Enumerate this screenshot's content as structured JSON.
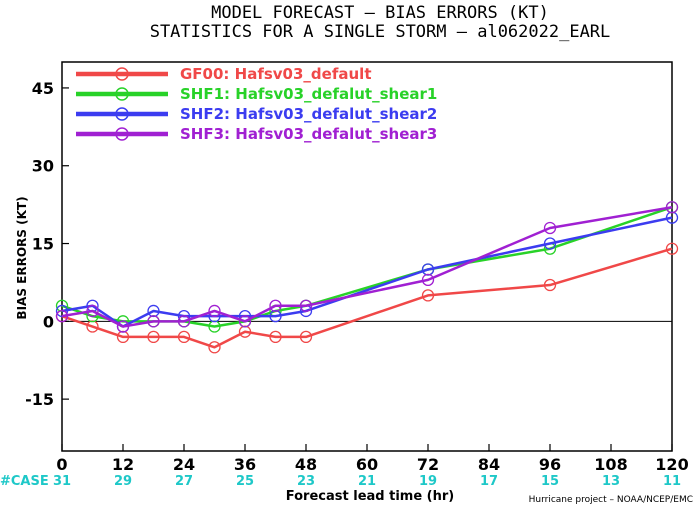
{
  "chart_data": {
    "type": "line",
    "title": "MODEL FORECAST – BIAS ERRORS (KT)",
    "subtitle": "STATISTICS FOR A SINGLE STORM – al062022_EARL",
    "ylabel": "BIAS ERRORS (KT)",
    "xlabel": "Forecast lead time (hr)",
    "credit": "Hurricane project – NOAA/NCEP/EMC",
    "xlim": [
      0,
      120
    ],
    "ylim": [
      -25,
      50
    ],
    "xticks": [
      "0",
      "12",
      "24",
      "36",
      "48",
      "60",
      "72",
      "84",
      "96",
      "108",
      "120"
    ],
    "yticks": [
      "45",
      "30",
      "15",
      "0",
      "-15"
    ],
    "case_label": "#CASE",
    "cases": [
      "31",
      "29",
      "27",
      "25",
      "23",
      "21",
      "19",
      "17",
      "15",
      "13",
      "11"
    ],
    "zero_line": true,
    "legend_position": "top-left",
    "series": [
      {
        "name": "GF00: Hafsv03_default",
        "color": "#f04848",
        "x": [
          0,
          6,
          12,
          18,
          24,
          30,
          36,
          42,
          48,
          72,
          96,
          120
        ],
        "y": [
          1,
          -1,
          -3,
          -3,
          -3,
          -5,
          -2,
          -3,
          -3,
          5,
          7,
          14
        ]
      },
      {
        "name": "SHF1: Hafsv03_defalut_shear1",
        "color": "#28d228",
        "x": [
          0,
          6,
          12,
          18,
          24,
          30,
          36,
          42,
          48,
          72,
          96,
          120
        ],
        "y": [
          3,
          1,
          0,
          0,
          0,
          -1,
          0,
          2,
          3,
          10,
          14,
          22
        ]
      },
      {
        "name": "SHF2: Hafsv03_defalut_shear2",
        "color": "#3c3cf0",
        "x": [
          0,
          6,
          12,
          18,
          24,
          30,
          36,
          42,
          48,
          72,
          96,
          120
        ],
        "y": [
          2,
          3,
          -1,
          2,
          1,
          1,
          1,
          1,
          2,
          10,
          15,
          20
        ]
      },
      {
        "name": "SHF3: Hafsv03_defalut_shear3",
        "color": "#a020d2",
        "x": [
          0,
          6,
          12,
          18,
          24,
          30,
          36,
          42,
          48,
          72,
          96,
          120
        ],
        "y": [
          1,
          2,
          -1,
          0,
          0,
          2,
          0,
          3,
          3,
          8,
          18,
          22
        ]
      }
    ]
  }
}
